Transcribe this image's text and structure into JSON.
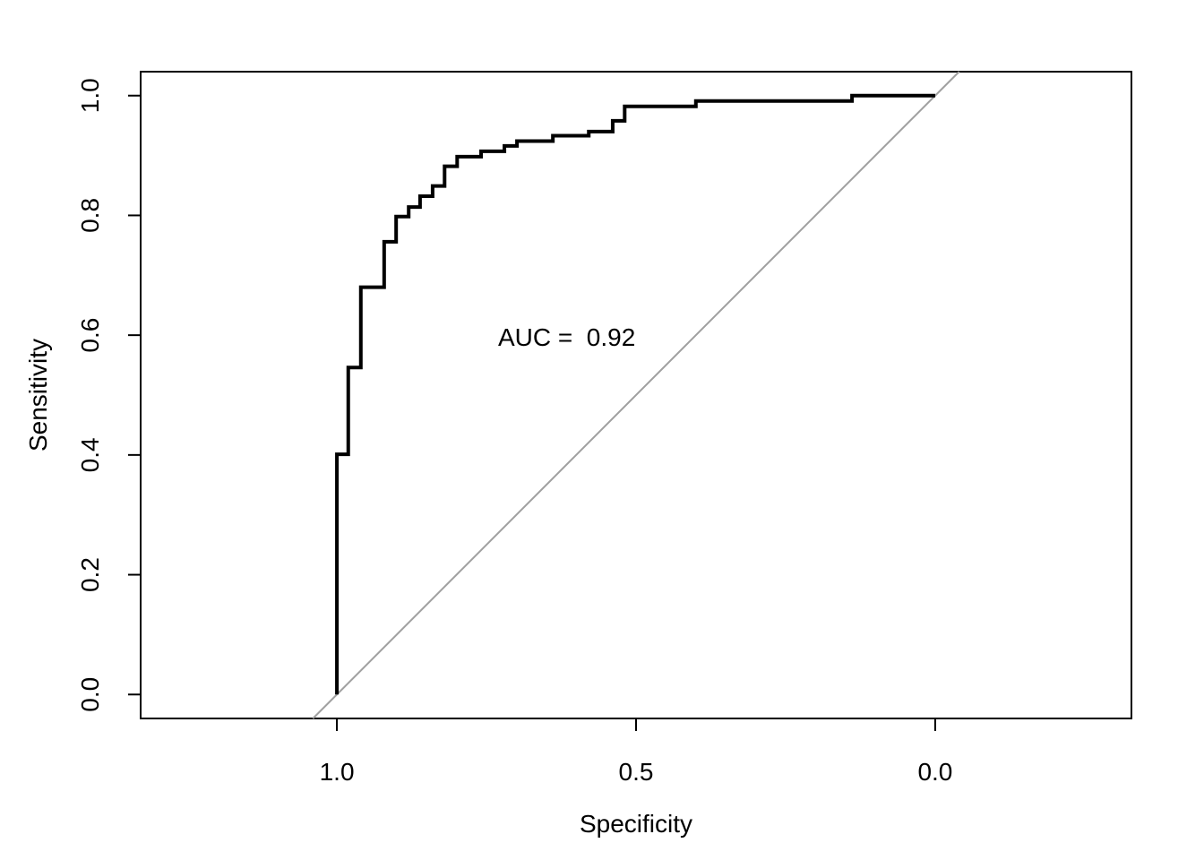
{
  "chart_data": {
    "type": "line",
    "xlabel": "Specificity",
    "ylabel": "Sensitivity",
    "annotation": "AUC =  0.92",
    "x_reversed": true,
    "diagonal_color": "#a0a0a0",
    "series": [
      {
        "color": "#000000",
        "x": [
          1,
          1,
          0.981,
          0.981,
          0.96,
          0.96,
          0.921,
          0.921,
          0.901,
          0.901,
          0.88,
          0.88,
          0.861,
          0.861,
          0.84,
          0.84,
          0.82,
          0.82,
          0.799,
          0.799,
          0.759,
          0.759,
          0.72,
          0.72,
          0.699,
          0.699,
          0.639,
          0.639,
          0.579,
          0.579,
          0.539,
          0.539,
          0.519,
          0.519,
          0.4,
          0.4,
          0.139,
          0.139,
          0
        ],
        "values": [
          0,
          0.401,
          0.401,
          0.546,
          0.546,
          0.68,
          0.68,
          0.756,
          0.756,
          0.798,
          0.798,
          0.814,
          0.814,
          0.832,
          0.832,
          0.849,
          0.849,
          0.882,
          0.882,
          0.898,
          0.898,
          0.907,
          0.907,
          0.916,
          0.916,
          0.924,
          0.924,
          0.933,
          0.933,
          0.94,
          0.94,
          0.958,
          0.958,
          0.982,
          0.982,
          0.991,
          0.991,
          1,
          1
        ]
      }
    ],
    "xlim": [
      1.328,
      -0.328
    ],
    "ylim": [
      -0.04,
      1.04
    ],
    "xticks": [
      {
        "value": 1,
        "label": "1.0"
      },
      0.5,
      {
        "value": 0,
        "label": "0.0"
      }
    ],
    "yticks": [
      {
        "value": 0,
        "label": "0.0"
      },
      0.2,
      0.4,
      0.6,
      0.8,
      {
        "value": 1,
        "label": "1.0"
      }
    ]
  }
}
